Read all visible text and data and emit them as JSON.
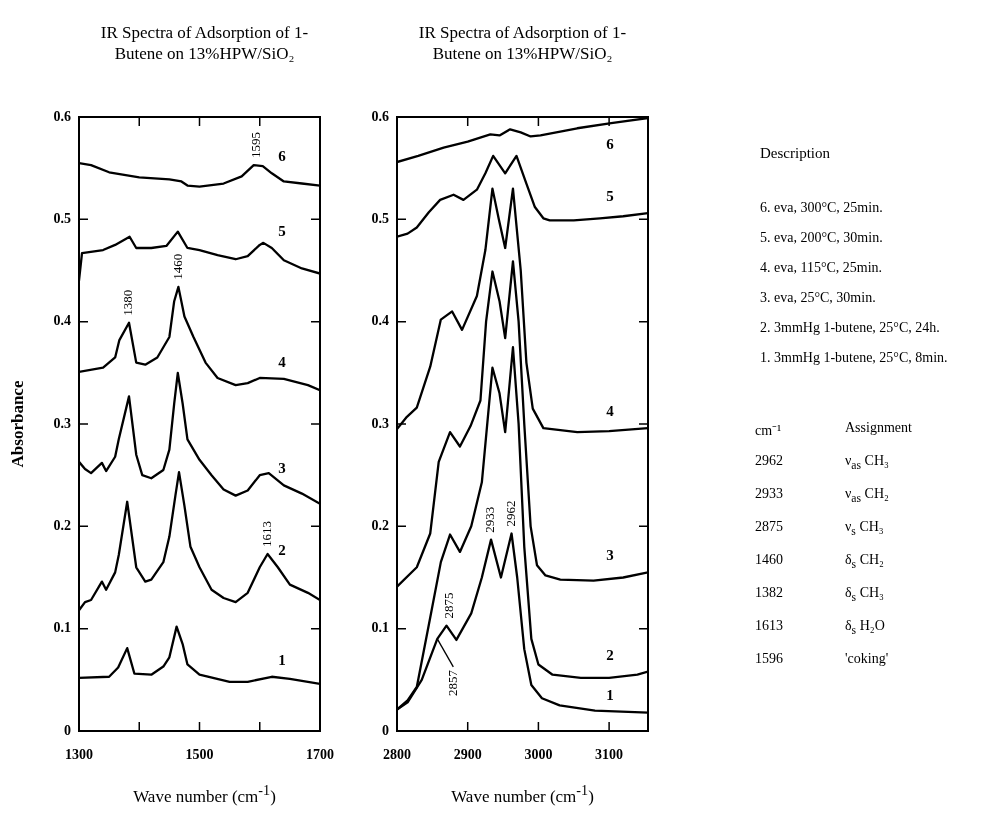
{
  "chart_data": [
    {
      "type": "line",
      "title": "IR Spectra of Adsorption of 1-Butene on 13%HPW/SiO₂",
      "xlabel": "Wave number (cm$^{-1}$)",
      "ylabel": "Absorbance",
      "xlim": [
        1300,
        1700
      ],
      "xticks": [
        1300,
        {
          "value": 1400,
          "label": null
        },
        1500,
        {
          "value": 1600,
          "label": null
        },
        1700
      ],
      "ylim": [
        0,
        0.6
      ],
      "yticks": [
        0,
        0.1,
        0.2,
        0.3,
        0.4,
        0.5,
        0.6
      ],
      "annotations": [
        {
          "text": "1595",
          "x": 1595,
          "y": 0.553
        },
        {
          "text": "1460",
          "x": 1465,
          "y": 0.434
        },
        {
          "text": "1380",
          "x": 1383,
          "y": 0.399
        },
        {
          "text": "1613",
          "x": 1613,
          "y": 0.173
        }
      ],
      "series": [
        {
          "name": "1",
          "color": "#000000",
          "x": [
            1300,
            1350,
            1365,
            1380,
            1392,
            1420,
            1440,
            1450,
            1462,
            1472,
            1480,
            1500,
            1550,
            1580,
            1620,
            1650,
            1700
          ],
          "values": [
            0.052,
            0.053,
            0.062,
            0.081,
            0.056,
            0.055,
            0.063,
            0.072,
            0.102,
            0.085,
            0.065,
            0.055,
            0.048,
            0.048,
            0.053,
            0.051,
            0.046
          ]
        },
        {
          "name": "2",
          "color": "#000000",
          "x": [
            1300,
            1310,
            1320,
            1338,
            1345,
            1360,
            1366,
            1380,
            1395,
            1410,
            1420,
            1440,
            1450,
            1460,
            1466,
            1475,
            1485,
            1500,
            1520,
            1540,
            1560,
            1580,
            1600,
            1613,
            1630,
            1650,
            1680,
            1700
          ],
          "values": [
            0.118,
            0.126,
            0.128,
            0.146,
            0.138,
            0.155,
            0.172,
            0.224,
            0.16,
            0.146,
            0.148,
            0.165,
            0.19,
            0.23,
            0.253,
            0.22,
            0.18,
            0.16,
            0.138,
            0.13,
            0.126,
            0.135,
            0.16,
            0.173,
            0.16,
            0.143,
            0.135,
            0.128
          ]
        },
        {
          "name": "3",
          "color": "#000000",
          "x": [
            1300,
            1310,
            1320,
            1338,
            1345,
            1360,
            1366,
            1383,
            1395,
            1405,
            1420,
            1440,
            1450,
            1458,
            1464,
            1472,
            1480,
            1500,
            1520,
            1540,
            1560,
            1580,
            1600,
            1615,
            1640,
            1670,
            1700
          ],
          "values": [
            0.263,
            0.256,
            0.252,
            0.262,
            0.254,
            0.268,
            0.285,
            0.327,
            0.27,
            0.25,
            0.247,
            0.255,
            0.275,
            0.32,
            0.35,
            0.32,
            0.285,
            0.265,
            0.25,
            0.236,
            0.23,
            0.235,
            0.25,
            0.252,
            0.24,
            0.232,
            0.222
          ]
        },
        {
          "name": "4",
          "color": "#000000",
          "x": [
            1300,
            1340,
            1360,
            1367,
            1383,
            1395,
            1410,
            1430,
            1450,
            1458,
            1465,
            1475,
            1490,
            1510,
            1530,
            1560,
            1580,
            1600,
            1640,
            1680,
            1700
          ],
          "values": [
            0.351,
            0.355,
            0.365,
            0.382,
            0.399,
            0.36,
            0.358,
            0.365,
            0.385,
            0.42,
            0.434,
            0.405,
            0.385,
            0.36,
            0.345,
            0.338,
            0.34,
            0.345,
            0.344,
            0.338,
            0.333
          ]
        },
        {
          "name": "5",
          "color": "#000000",
          "x": [
            1300,
            1305,
            1340,
            1360,
            1384,
            1395,
            1420,
            1445,
            1464,
            1480,
            1500,
            1530,
            1560,
            1580,
            1600,
            1606,
            1620,
            1640,
            1670,
            1700
          ],
          "values": [
            0.44,
            0.467,
            0.47,
            0.475,
            0.483,
            0.472,
            0.472,
            0.474,
            0.488,
            0.472,
            0.47,
            0.465,
            0.461,
            0.464,
            0.475,
            0.477,
            0.472,
            0.46,
            0.452,
            0.447
          ]
        },
        {
          "name": "6",
          "color": "#000000",
          "x": [
            1300,
            1320,
            1350,
            1400,
            1450,
            1470,
            1480,
            1500,
            1540,
            1570,
            1590,
            1605,
            1620,
            1640,
            1670,
            1700
          ],
          "values": [
            0.555,
            0.553,
            0.546,
            0.541,
            0.539,
            0.537,
            0.533,
            0.532,
            0.535,
            0.542,
            0.553,
            0.552,
            0.545,
            0.537,
            0.535,
            0.533
          ]
        }
      ]
    },
    {
      "type": "line",
      "title": "IR Spectra of Adsorption of 1-Butene on 13%HPW/SiO₂",
      "xlabel": "Wave number (cm$^{-1}$)",
      "xlim": [
        2800,
        3155
      ],
      "xticks": [
        2800,
        2900,
        3000,
        3100
      ],
      "ylim": [
        0,
        0.6
      ],
      "yticks": [
        0,
        0.1,
        0.2,
        0.3,
        0.4,
        0.5,
        0.6
      ],
      "annotations": [
        {
          "text": "2933",
          "x": 2933,
          "y": 0.187
        },
        {
          "text": "2962",
          "x": 2962,
          "y": 0.193
        },
        {
          "text": "2875",
          "x": 2875,
          "y": 0.103
        },
        {
          "text": "2857",
          "x": 2857,
          "y": 0.09
        }
      ],
      "series": [
        {
          "name": "1",
          "color": "#000000",
          "x": [
            2800,
            2815,
            2835,
            2857,
            2870,
            2884,
            2905,
            2920,
            2933,
            2947,
            2962,
            2970,
            2980,
            2990,
            3005,
            3030,
            3080,
            3155
          ],
          "values": [
            0.021,
            0.028,
            0.05,
            0.09,
            0.103,
            0.089,
            0.115,
            0.15,
            0.187,
            0.15,
            0.193,
            0.15,
            0.08,
            0.045,
            0.032,
            0.025,
            0.02,
            0.018
          ]
        },
        {
          "name": "2",
          "color": "#000000",
          "x": [
            2800,
            2815,
            2828,
            2847,
            2862,
            2875,
            2889,
            2905,
            2920,
            2935,
            2945,
            2953,
            2964,
            2972,
            2980,
            2990,
            3000,
            3020,
            3060,
            3100,
            3140,
            3155
          ],
          "values": [
            0.021,
            0.03,
            0.043,
            0.111,
            0.165,
            0.192,
            0.175,
            0.2,
            0.243,
            0.355,
            0.33,
            0.292,
            0.375,
            0.3,
            0.18,
            0.09,
            0.065,
            0.055,
            0.052,
            0.052,
            0.055,
            0.058
          ]
        },
        {
          "name": "3",
          "color": "#000000",
          "x": [
            2800,
            2828,
            2847,
            2859,
            2875,
            2889,
            2904,
            2918,
            2926,
            2935,
            2945,
            2953,
            2964,
            2972,
            2980,
            2989,
            2998,
            3010,
            3031,
            3078,
            3120,
            3155
          ],
          "values": [
            0.141,
            0.16,
            0.193,
            0.263,
            0.292,
            0.278,
            0.298,
            0.323,
            0.4,
            0.449,
            0.42,
            0.384,
            0.459,
            0.4,
            0.3,
            0.2,
            0.162,
            0.152,
            0.148,
            0.147,
            0.15,
            0.155
          ]
        },
        {
          "name": "4",
          "color": "#000000",
          "x": [
            2800,
            2814,
            2828,
            2847,
            2862,
            2878,
            2892,
            2913,
            2925,
            2935,
            2944,
            2953,
            2964,
            2975,
            2983,
            2992,
            3007,
            3055,
            3100,
            3155
          ],
          "values": [
            0.295,
            0.307,
            0.316,
            0.356,
            0.402,
            0.41,
            0.392,
            0.425,
            0.47,
            0.53,
            0.5,
            0.472,
            0.53,
            0.45,
            0.36,
            0.315,
            0.296,
            0.292,
            0.293,
            0.296
          ]
        },
        {
          "name": "5",
          "color": "#000000",
          "x": [
            2800,
            2815,
            2828,
            2845,
            2861,
            2880,
            2894,
            2913,
            2925,
            2936,
            2953,
            2969,
            2983,
            2995,
            3007,
            3016,
            3050,
            3087,
            3120,
            3155
          ],
          "values": [
            0.483,
            0.486,
            0.492,
            0.507,
            0.519,
            0.524,
            0.519,
            0.529,
            0.545,
            0.562,
            0.545,
            0.562,
            0.535,
            0.512,
            0.501,
            0.499,
            0.499,
            0.501,
            0.503,
            0.506
          ]
        },
        {
          "name": "6",
          "color": "#000000",
          "x": [
            2800,
            2830,
            2866,
            2900,
            2932,
            2945,
            2960,
            2975,
            2989,
            3003,
            3055,
            3103,
            3155
          ],
          "values": [
            0.556,
            0.562,
            0.57,
            0.576,
            0.583,
            0.582,
            0.588,
            0.585,
            0.581,
            0.582,
            0.589,
            0.594,
            0.599
          ]
        }
      ]
    },
    {
      "type": "other",
      "title": "Description",
      "annotations": [
        "6. eva, 300°C, 25min.",
        "5. eva, 200°C, 30min.",
        "4. eva, 115°C, 25min.",
        "3. eva, 25°C, 30min.",
        "2. 3mmHg 1-butene, 25°C, 24h.",
        "1. 3mmHg 1-butene, 25°C, 8min.",
        "cm⁻¹\tAssignment",
        "2962\tν$_{as}$  CH₃",
        "2933\tν$_{as}$  CH₂",
        "2875\tν$_{s}$  CH₃",
        "1460\tδ$_{s}$  CH₂",
        "1382\tδ$_{s}$  CH₃",
        "1613\tδ$_{s}$  H₂O",
        "1596\t'coking'"
      ]
    }
  ]
}
